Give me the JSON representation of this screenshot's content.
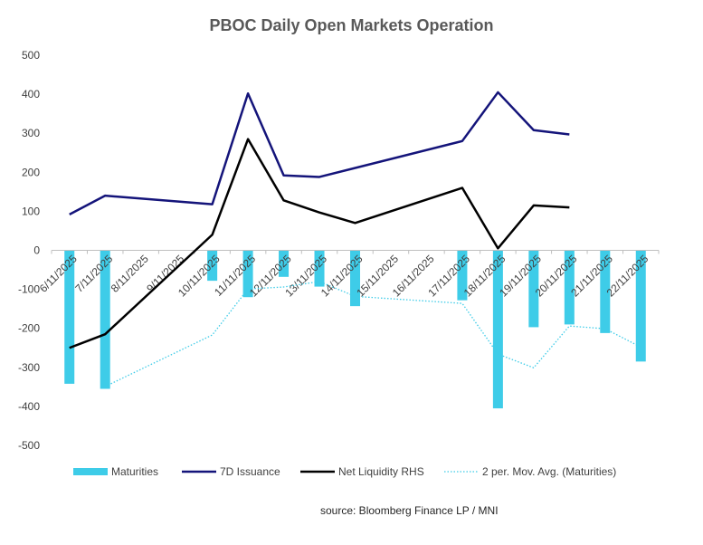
{
  "chart_data": {
    "type": "bar",
    "title": "PBOC Daily Open Markets Operation",
    "categories": [
      "6/11/2025",
      "7/11/2025",
      "8/11/2025",
      "9/11/2025",
      "10/11/2025",
      "11/11/2025",
      "12/11/2025",
      "13/11/2025",
      "14/11/2025",
      "15/11/2025",
      "16/11/2025",
      "17/11/2025",
      "18/11/2025",
      "19/11/2025",
      "20/11/2025",
      "21/11/2025",
      "22/11/2025"
    ],
    "y_ticks": [
      "500",
      "400",
      "300",
      "200",
      "100",
      "0",
      "-100",
      "-200",
      "-300",
      "-400",
      "-500"
    ],
    "ylim": [
      -500,
      500
    ],
    "grid": false,
    "legend_position": "bottom",
    "series": [
      {
        "name": "Maturities",
        "kind": "bar",
        "color": "#3ecce8",
        "values": [
          -342,
          -355,
          null,
          null,
          -78,
          -120,
          -68,
          -93,
          -143,
          null,
          null,
          -128,
          -405,
          -197,
          -190,
          -212,
          -285
        ]
      },
      {
        "name": "7D Issuance",
        "kind": "line",
        "color": "#14147a",
        "values": [
          92,
          140,
          null,
          null,
          118,
          402,
          192,
          188,
          null,
          null,
          null,
          280,
          405,
          308,
          297,
          null,
          null
        ]
      },
      {
        "name": "Net Liquidity RHS",
        "kind": "line",
        "color": "#000000",
        "values": [
          -250,
          -215,
          null,
          null,
          40,
          285,
          128,
          97,
          70,
          null,
          null,
          160,
          5,
          115,
          110,
          null,
          null
        ]
      },
      {
        "name": "2 per. Mov. Avg. (Maturities)",
        "kind": "dotted",
        "color": "#3ecce8",
        "values": [
          null,
          -349,
          null,
          null,
          -217,
          -99,
          -94,
          -80,
          -118,
          null,
          null,
          -136,
          -266,
          -301,
          -194,
          -201,
          -248
        ]
      }
    ]
  },
  "source_text": "source: Bloomberg Finance LP / MNI"
}
